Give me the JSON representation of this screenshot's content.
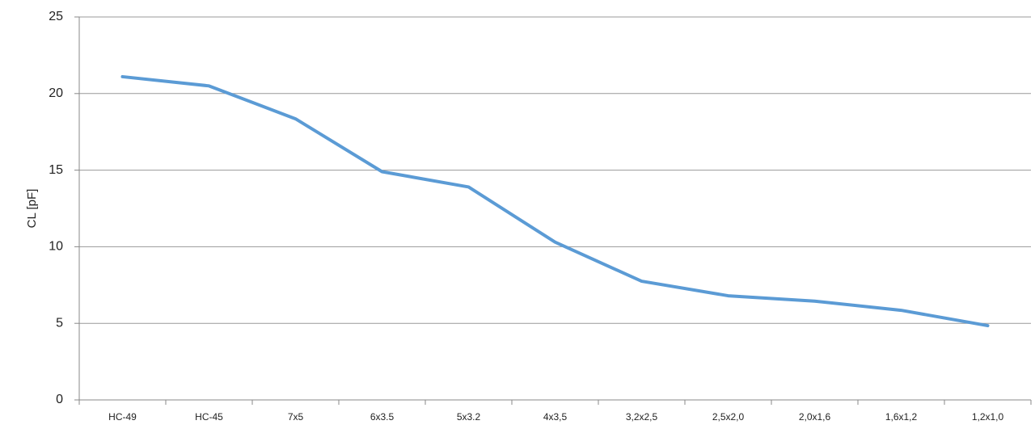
{
  "chart_data": {
    "type": "line",
    "y_label": "CL [pF]",
    "categories": [
      "HC-49",
      "HC-45",
      "7x5",
      "6x3.5",
      "5x3.2",
      "4x3,5",
      "3,2x2,5",
      "2,5x2,0",
      "2,0x1,6",
      "1,6x1,2",
      "1,2x1,0"
    ],
    "values": [
      21.1,
      20.5,
      18.35,
      14.9,
      13.9,
      10.3,
      7.75,
      6.8,
      6.45,
      5.85,
      4.85
    ],
    "color": "#5b9bd5",
    "ylim": [
      0,
      25
    ],
    "yticks": [
      0,
      5,
      10,
      15,
      20,
      25
    ],
    "grid": true
  }
}
